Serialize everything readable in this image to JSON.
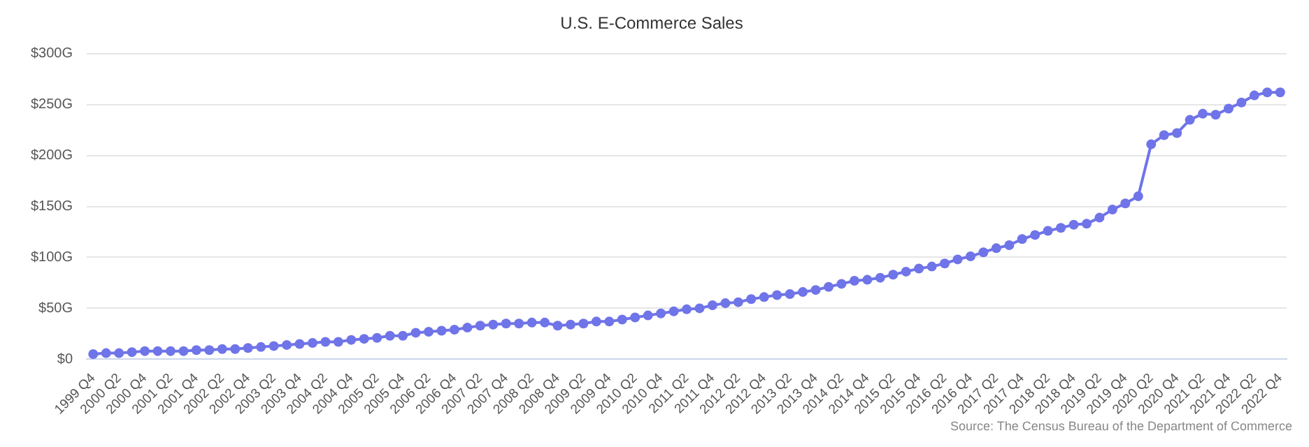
{
  "chart_data": {
    "type": "line",
    "title": "U.S. E-Commerce Sales",
    "categories": [
      "1999 Q4",
      null,
      "2000 Q2",
      null,
      "2000 Q4",
      null,
      "2001 Q2",
      null,
      "2001 Q4",
      null,
      "2002 Q2",
      null,
      "2002 Q4",
      null,
      "2003 Q2",
      null,
      "2003 Q4",
      null,
      "2004 Q2",
      null,
      "2004 Q4",
      null,
      "2005 Q2",
      null,
      "2005 Q4",
      null,
      "2006 Q2",
      null,
      "2006 Q4",
      null,
      "2007 Q2",
      null,
      "2007 Q4",
      null,
      "2008 Q2",
      null,
      "2008 Q4",
      null,
      "2009 Q2",
      null,
      "2009 Q4",
      null,
      "2010 Q2",
      null,
      "2010 Q4",
      null,
      "2011 Q2",
      null,
      "2011 Q4",
      null,
      "2012 Q2",
      null,
      "2012 Q4",
      null,
      "2013 Q2",
      null,
      "2013 Q4",
      null,
      "2014 Q2",
      null,
      "2014 Q4",
      null,
      "2015 Q2",
      null,
      "2015 Q4",
      null,
      "2016 Q2",
      null,
      "2016 Q4",
      null,
      "2017 Q2",
      null,
      "2017 Q4",
      null,
      "2018 Q2",
      null,
      "2018 Q4",
      null,
      "2019 Q2",
      null,
      "2019 Q4",
      null,
      "2020 Q2",
      null,
      "2020 Q4",
      null,
      "2021 Q2",
      null,
      "2021 Q4",
      null,
      "2022 Q2",
      null,
      "2022 Q4"
    ],
    "series": [
      {
        "color": "#6f74e8",
        "values": [
          5,
          6,
          6,
          7,
          8,
          8,
          8,
          8,
          9,
          9,
          10,
          10,
          11,
          12,
          13,
          14,
          15,
          16,
          17,
          17,
          19,
          20,
          21,
          23,
          23,
          26,
          27,
          28,
          29,
          31,
          33,
          34,
          35,
          35,
          36,
          36,
          33,
          34,
          35,
          37,
          37,
          39,
          41,
          43,
          45,
          47,
          49,
          50,
          53,
          55,
          56,
          59,
          61,
          63,
          64,
          66,
          68,
          71,
          74,
          77,
          78,
          80,
          83,
          86,
          89,
          91,
          94,
          98,
          101,
          105,
          109,
          112,
          118,
          122,
          126,
          129,
          132,
          133,
          139,
          147,
          153,
          160,
          211,
          220,
          222,
          235,
          241,
          240,
          246,
          252,
          259,
          262,
          262
        ]
      }
    ],
    "ylim": [
      0,
      300
    ],
    "yticks": [
      {
        "value": 0,
        "label": "$0"
      },
      {
        "value": 50,
        "label": "$50G"
      },
      {
        "value": 100,
        "label": "$100G"
      },
      {
        "value": 150,
        "label": "$150G"
      },
      {
        "value": 200,
        "label": "$200G"
      },
      {
        "value": 250,
        "label": "$250G"
      },
      {
        "value": 300,
        "label": "$300G"
      }
    ],
    "grid": "y",
    "marker": "circle",
    "line_style": "solid",
    "legend": false,
    "annotations": [
      "Source: The Census Bureau of the Department of Commerce"
    ]
  }
}
